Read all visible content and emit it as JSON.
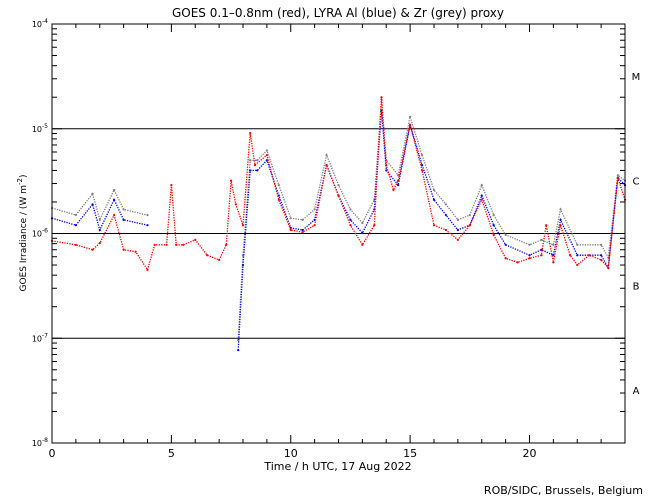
{
  "chart_data": {
    "type": "scatter",
    "title": "GOES 0.1–0.8nm (red), LYRA Al (blue) & Zr (grey) proxy",
    "xlabel": "Time / h UTC, 17 Aug 2022",
    "ylabel": "GOES Irradiance / (W m",
    "ylabel_sup": "-2",
    "ylabel_close": ")",
    "xlim": [
      0,
      24
    ],
    "ylim": [
      1e-08,
      0.0001
    ],
    "yscale": "log",
    "x_ticks": [
      0,
      5,
      10,
      15,
      20
    ],
    "y_ticks": [
      {
        "base": "10",
        "exp": "-8",
        "value": 1e-08
      },
      {
        "base": "10",
        "exp": "-7",
        "value": 1e-07
      },
      {
        "base": "10",
        "exp": "-6",
        "value": 1e-06
      },
      {
        "base": "10",
        "exp": "-5",
        "value": 1e-05
      },
      {
        "base": "10",
        "exp": "-4",
        "value": 0.0001
      }
    ],
    "flare_classes": [
      {
        "label": "A",
        "value": 3.2e-08
      },
      {
        "label": "B",
        "value": 3.2e-07
      },
      {
        "label": "C",
        "value": 3.2e-06
      },
      {
        "label": "M",
        "value": 3.2e-05
      }
    ],
    "reference_lines": [
      1e-07,
      1e-06,
      1e-05
    ],
    "series": [
      {
        "name": "GOES 0.1-0.8nm",
        "color": "#ff0000",
        "points": [
          [
            0,
            8.5e-07
          ],
          [
            1,
            7.8e-07
          ],
          [
            1.7,
            7e-07
          ],
          [
            2.0,
            8.1e-07
          ],
          [
            2.6,
            1.5e-06
          ],
          [
            3.0,
            7e-07
          ],
          [
            3.5,
            6.7e-07
          ],
          [
            4.0,
            4.5e-07
          ],
          [
            4.3,
            7.8e-07
          ],
          [
            4.8,
            7.8e-07
          ],
          [
            5.0,
            2.9e-06
          ],
          [
            5.2,
            7.8e-07
          ],
          [
            5.5,
            7.8e-07
          ],
          [
            6.0,
            8.7e-07
          ],
          [
            6.5,
            6.2e-07
          ],
          [
            7.0,
            5.6e-07
          ],
          [
            7.3,
            7.8e-07
          ],
          [
            7.5,
            3.2e-06
          ],
          [
            7.7,
            1.9e-06
          ],
          [
            8.0,
            1.2e-06
          ],
          [
            8.3,
            9.1e-06
          ],
          [
            8.5,
            4.5e-06
          ],
          [
            9.0,
            5.6e-06
          ],
          [
            9.5,
            2.1e-06
          ],
          [
            10.0,
            1.08e-06
          ],
          [
            10.5,
            1.03e-06
          ],
          [
            11.0,
            1.2e-06
          ],
          [
            11.5,
            4.5e-06
          ],
          [
            12.0,
            2.3e-06
          ],
          [
            12.5,
            1.2e-06
          ],
          [
            13.0,
            7.8e-07
          ],
          [
            13.5,
            1.2e-06
          ],
          [
            13.8,
            2e-05
          ],
          [
            14.0,
            4.5e-06
          ],
          [
            14.3,
            2.6e-06
          ],
          [
            14.5,
            3.2e-06
          ],
          [
            15.0,
            1.09e-05
          ],
          [
            15.5,
            4e-06
          ],
          [
            16.0,
            1.2e-06
          ],
          [
            16.5,
            1.08e-06
          ],
          [
            17.0,
            8.7e-07
          ],
          [
            17.5,
            1.2e-06
          ],
          [
            18.0,
            2.1e-06
          ],
          [
            18.5,
            9.7e-07
          ],
          [
            19.0,
            5.8e-07
          ],
          [
            19.5,
            5.3e-07
          ],
          [
            20.0,
            5.8e-07
          ],
          [
            20.5,
            6.2e-07
          ],
          [
            20.7,
            1.2e-06
          ],
          [
            21.0,
            5.3e-07
          ],
          [
            21.3,
            1.2e-06
          ],
          [
            21.7,
            6.2e-07
          ],
          [
            22.0,
            5e-07
          ],
          [
            22.5,
            6.2e-07
          ],
          [
            23.0,
            5.6e-07
          ],
          [
            23.3,
            4.7e-07
          ],
          [
            23.7,
            3.4e-06
          ],
          [
            24.0,
            2.1e-06
          ]
        ]
      },
      {
        "name": "LYRA Al proxy",
        "color": "#0000ff",
        "points": [
          [
            0,
            1.4e-06
          ],
          [
            1,
            1.2e-06
          ],
          [
            1.7,
            1.9e-06
          ],
          [
            2.0,
            1.08e-06
          ],
          [
            2.6,
            2.1e-06
          ],
          [
            3.0,
            1.35e-06
          ],
          [
            4.0,
            1.2e-06
          ],
          [
            7.8,
            7.7e-08
          ],
          [
            8.0,
            5e-07
          ],
          [
            8.3,
            4e-06
          ],
          [
            8.6,
            4e-06
          ],
          [
            9.0,
            5e-06
          ],
          [
            9.5,
            2.3e-06
          ],
          [
            10.0,
            1.13e-06
          ],
          [
            10.5,
            1.08e-06
          ],
          [
            11.0,
            1.35e-06
          ],
          [
            11.5,
            4.5e-06
          ],
          [
            12.0,
            2.3e-06
          ],
          [
            12.5,
            1.35e-06
          ],
          [
            13.0,
            1.01e-06
          ],
          [
            13.5,
            1.7e-06
          ],
          [
            13.8,
            1.5e-05
          ],
          [
            14.0,
            4e-06
          ],
          [
            14.5,
            2.9e-06
          ],
          [
            15.0,
            1.09e-05
          ],
          [
            15.5,
            4.5e-06
          ],
          [
            16.0,
            2.1e-06
          ],
          [
            16.5,
            1.5e-06
          ],
          [
            17.0,
            1.08e-06
          ],
          [
            17.5,
            1.2e-06
          ],
          [
            18.0,
            2.3e-06
          ],
          [
            18.5,
            1.2e-06
          ],
          [
            19.0,
            7.8e-07
          ],
          [
            20.0,
            6.2e-07
          ],
          [
            20.5,
            7e-07
          ],
          [
            21.0,
            6.2e-07
          ],
          [
            21.3,
            1.35e-06
          ],
          [
            22.0,
            6.2e-07
          ],
          [
            23.0,
            6.2e-07
          ],
          [
            23.3,
            4.7e-07
          ],
          [
            23.7,
            3.4e-06
          ],
          [
            24.0,
            2.9e-06
          ]
        ]
      },
      {
        "name": "LYRA Zr proxy",
        "color": "#808080",
        "points": [
          [
            0,
            1.75e-06
          ],
          [
            1,
            1.5e-06
          ],
          [
            1.7,
            2.4e-06
          ],
          [
            2.0,
            1.35e-06
          ],
          [
            2.6,
            2.6e-06
          ],
          [
            3.0,
            1.7e-06
          ],
          [
            4.0,
            1.5e-06
          ],
          [
            7.8,
            9.6e-08
          ],
          [
            8.0,
            6.2e-07
          ],
          [
            8.3,
            5e-06
          ],
          [
            8.6,
            5e-06
          ],
          [
            9.0,
            6.2e-06
          ],
          [
            9.5,
            2.9e-06
          ],
          [
            10.0,
            1.4e-06
          ],
          [
            10.5,
            1.35e-06
          ],
          [
            11.0,
            1.7e-06
          ],
          [
            11.5,
            5.6e-06
          ],
          [
            12.0,
            2.9e-06
          ],
          [
            12.5,
            1.7e-06
          ],
          [
            13.0,
            1.26e-06
          ],
          [
            13.5,
            2.1e-06
          ],
          [
            13.8,
            1.9e-05
          ],
          [
            14.0,
            5e-06
          ],
          [
            14.5,
            3.6e-06
          ],
          [
            15.0,
            1.3e-05
          ],
          [
            15.5,
            5.6e-06
          ],
          [
            16.0,
            2.6e-06
          ],
          [
            16.5,
            1.9e-06
          ],
          [
            17.0,
            1.35e-06
          ],
          [
            17.5,
            1.5e-06
          ],
          [
            18.0,
            2.9e-06
          ],
          [
            18.5,
            1.5e-06
          ],
          [
            19.0,
            9.7e-07
          ],
          [
            20.0,
            7.8e-07
          ],
          [
            20.5,
            8.7e-07
          ],
          [
            21.0,
            7.8e-07
          ],
          [
            21.3,
            1.7e-06
          ],
          [
            22.0,
            7.8e-07
          ],
          [
            23.0,
            7.8e-07
          ],
          [
            23.3,
            5.9e-07
          ],
          [
            23.7,
            3.6e-06
          ],
          [
            24.0,
            3.2e-06
          ]
        ]
      }
    ]
  },
  "footer": "ROB/SIDC, Brussels, Belgium"
}
